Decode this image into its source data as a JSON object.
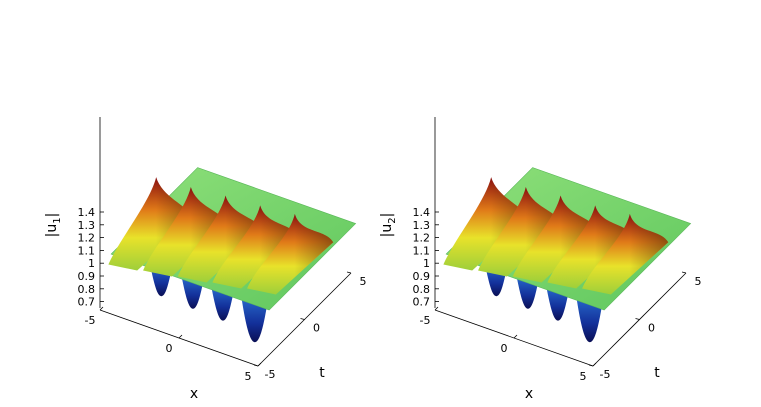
{
  "chart_data": [
    {
      "type": "surface",
      "zlabel": "|u",
      "zlabel_sub": "1",
      "xlabel": "x",
      "ylabel": "t",
      "x_ticks": [
        "-5",
        "0",
        "5"
      ],
      "t_ticks": [
        "-5",
        "0",
        "5"
      ],
      "z_ticks": [
        "0.7",
        "0.8",
        "0.9",
        "1",
        "1.1",
        "1.2",
        "1.3",
        "1.4"
      ],
      "xlim": [
        -5,
        5
      ],
      "tlim": [
        -5,
        5
      ],
      "zlim": [
        0.65,
        1.45
      ],
      "background_level": 1.0,
      "peaks": [
        {
          "x": -3.8,
          "t": -1.0,
          "z": 1.45
        },
        {
          "x": -1.9,
          "t": -0.5,
          "z": 1.42
        },
        {
          "x": 0.0,
          "t": 0.0,
          "z": 1.4
        },
        {
          "x": 1.9,
          "t": 0.5,
          "z": 1.37
        },
        {
          "x": 3.8,
          "t": 1.0,
          "z": 1.35
        }
      ],
      "troughs": [
        {
          "x": -2.0,
          "t": -3.5,
          "z": 0.78
        },
        {
          "x": 0.0,
          "t": -3.5,
          "z": 0.77
        },
        {
          "x": 1.9,
          "t": -3.5,
          "z": 0.76
        },
        {
          "x": 3.8,
          "t": -3.3,
          "z": 0.66
        }
      ],
      "colormap": "jet"
    },
    {
      "type": "surface",
      "zlabel": "|u",
      "zlabel_sub": "2",
      "xlabel": "x",
      "ylabel": "t",
      "x_ticks": [
        "-5",
        "0",
        "5"
      ],
      "t_ticks": [
        "-5",
        "0",
        "5"
      ],
      "z_ticks": [
        "0.7",
        "0.8",
        "0.9",
        "1",
        "1.1",
        "1.2",
        "1.3",
        "1.4"
      ],
      "xlim": [
        -5,
        5
      ],
      "tlim": [
        -5,
        5
      ],
      "zlim": [
        0.65,
        1.45
      ],
      "background_level": 1.0,
      "peaks": [
        {
          "x": -3.8,
          "t": -1.0,
          "z": 1.45
        },
        {
          "x": -1.9,
          "t": -0.5,
          "z": 1.42
        },
        {
          "x": 0.0,
          "t": 0.0,
          "z": 1.4
        },
        {
          "x": 1.9,
          "t": 0.5,
          "z": 1.37
        },
        {
          "x": 3.8,
          "t": 1.0,
          "z": 1.35
        }
      ],
      "troughs": [
        {
          "x": -2.0,
          "t": -3.5,
          "z": 0.78
        },
        {
          "x": 0.0,
          "t": -3.5,
          "z": 0.77
        },
        {
          "x": 1.9,
          "t": -3.5,
          "z": 0.76
        },
        {
          "x": 3.8,
          "t": -3.3,
          "z": 0.66
        }
      ],
      "colormap": "jet"
    }
  ]
}
